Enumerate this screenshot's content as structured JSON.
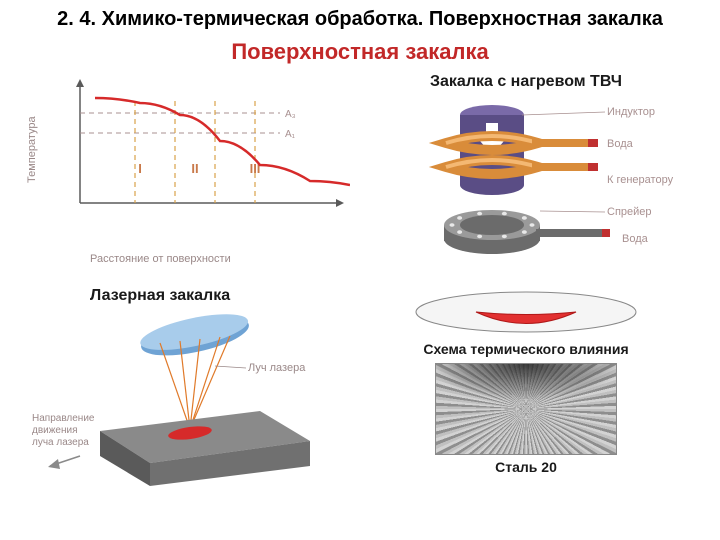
{
  "slide": {
    "title": "2. 4. Химико-термическая обработка. Поверхностная закалка",
    "main_heading": "Поверхностная закалка"
  },
  "chart": {
    "type": "line",
    "y_label": "Температура",
    "x_label": "Расстояние от поверхности",
    "curve_color": "#d62a2a",
    "dash_color": "#d9a24a",
    "axis_color": "#5a5a5a",
    "background": "#ffffff",
    "zone_labels": [
      "I",
      "II",
      "III"
    ],
    "zone_label_color": "#c97a4a",
    "ref_lines": [
      "A₃",
      "A₁"
    ],
    "ref_line_color": "#a89090",
    "curve_points": [
      [
        15,
        25
      ],
      [
        60,
        30
      ],
      [
        100,
        42
      ],
      [
        140,
        68
      ],
      [
        180,
        92
      ],
      [
        230,
        108
      ],
      [
        270,
        112
      ]
    ],
    "vlines_x": [
      70,
      110,
      150,
      190
    ],
    "hlines_y": [
      40,
      60
    ]
  },
  "tvch": {
    "title": "Закалка с нагревом ТВЧ",
    "labels": {
      "inductor": "Индуктор",
      "water_top": "Вода",
      "generator": "К генератору",
      "sprayer": "Спрейер",
      "water_bottom": "Вода"
    },
    "label_color": "#a89090",
    "coil_color": "#d98c3a",
    "coil_highlight": "#f4b873",
    "part_top_color": "#7a6aa8",
    "part_side_color": "#5a4d85",
    "arrow_color": "#ffffff",
    "sprayer_body": "#6b6b6b",
    "sprayer_top": "#9a9a9a",
    "hole_color": "#e8e8e8"
  },
  "laser": {
    "title": "Лазерная закалка",
    "labels": {
      "beam": "Луч лазера",
      "direction": "Направление движения луча лазера"
    },
    "label_color": "#9a8888",
    "lens_colors": [
      "#6fa3d4",
      "#a8cceb"
    ],
    "beam_color": "#e07a2a",
    "block_top": "#8a8a8a",
    "block_front": "#5a5a5a",
    "block_side": "#707070",
    "spot_color": "#d62a2a",
    "arrow_color": "#8a8a8a"
  },
  "thermal": {
    "title": "Схема термического влияния",
    "ellipse_top": "#f5f5f5",
    "ellipse_stroke": "#888888",
    "heat_color": "#e23030",
    "heat_edge": "#b01818"
  },
  "steel": {
    "caption": "Сталь 20"
  }
}
